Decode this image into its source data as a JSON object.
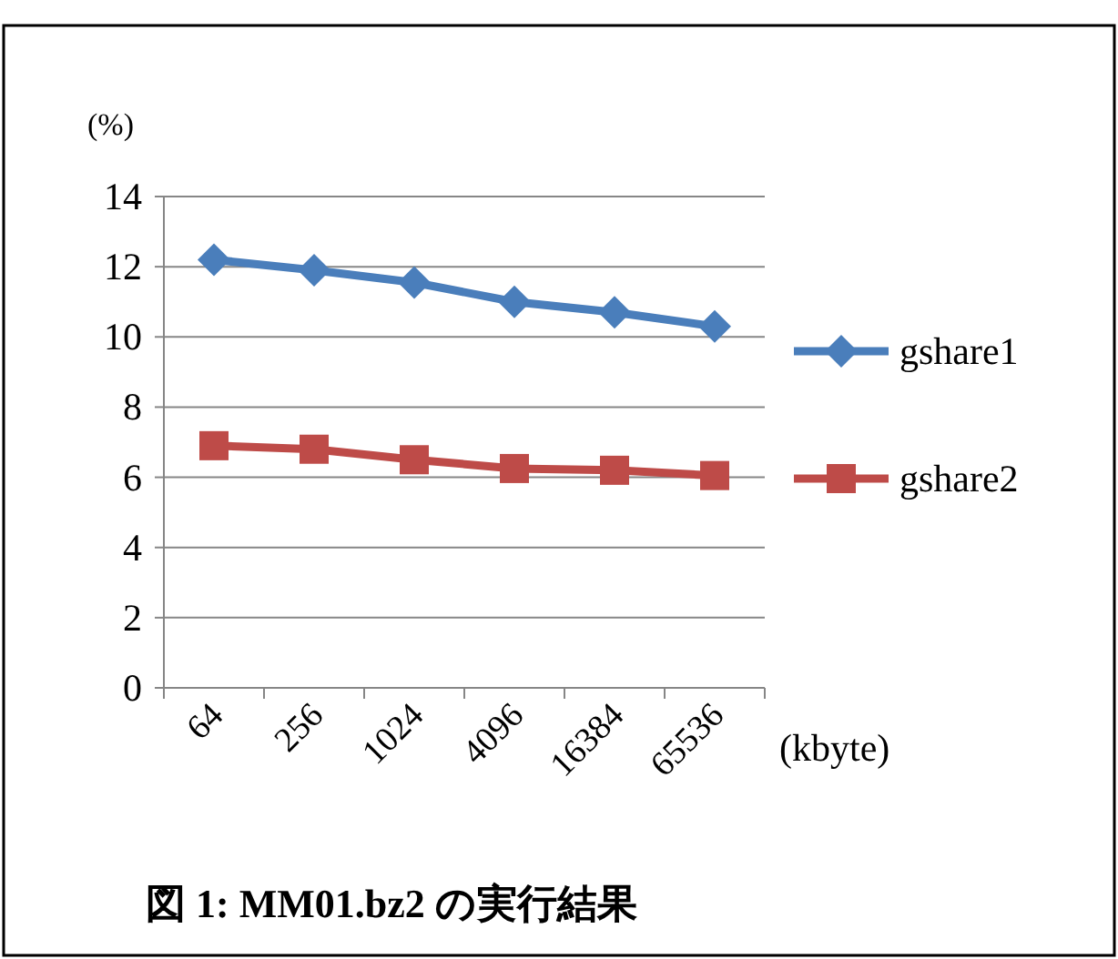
{
  "chart_data": {
    "type": "line",
    "title": "図 1: MM01.bz2 の実行結果",
    "ylabel": "(%)",
    "xlabel": "(kbyte)",
    "categories": [
      "64",
      "256",
      "1024",
      "4096",
      "16384",
      "65536"
    ],
    "series": [
      {
        "name": "gshare1",
        "color": "#4a7ebb",
        "marker": "diamond",
        "values": [
          12.2,
          11.9,
          11.55,
          11.0,
          10.7,
          10.3
        ]
      },
      {
        "name": "gshare2",
        "color": "#be4b48",
        "marker": "square",
        "values": [
          6.9,
          6.8,
          6.5,
          6.25,
          6.2,
          6.05
        ]
      }
    ],
    "ylim": [
      0,
      14
    ],
    "yticks": [
      0,
      2,
      4,
      6,
      8,
      10,
      12,
      14
    ],
    "grid": "y",
    "legend": "right",
    "line_style": "solid"
  }
}
